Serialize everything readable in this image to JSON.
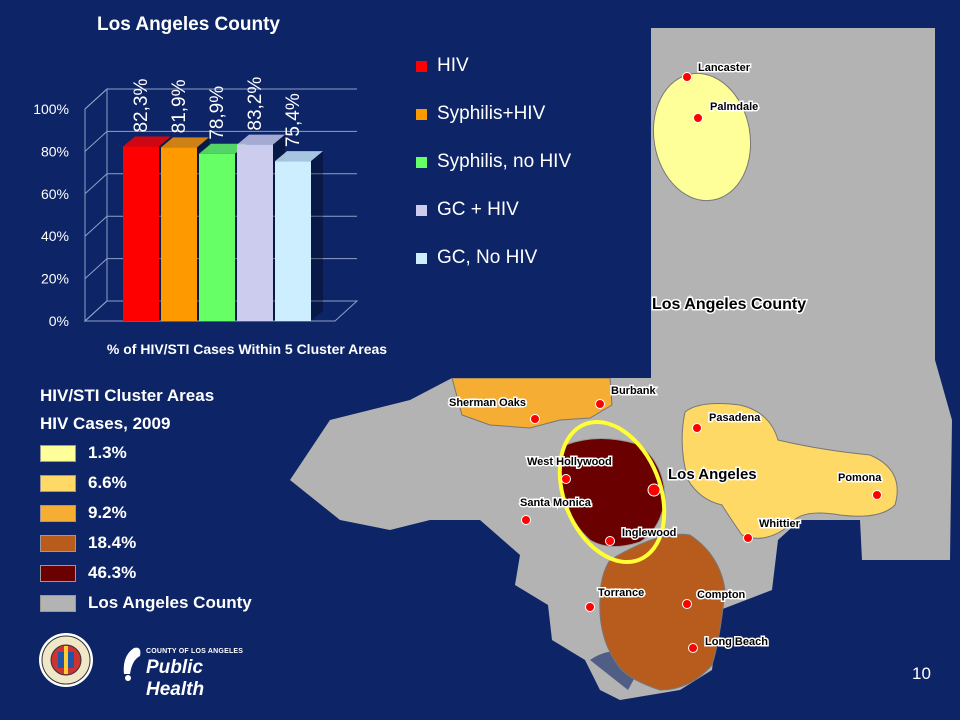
{
  "chart_data": {
    "type": "bar",
    "title": "Los Angeles County",
    "xlabel": "% of HIV/STI Cases Within 5 Cluster Areas",
    "ylabel": "",
    "ylim": [
      0,
      100
    ],
    "y_ticks": [
      "0%",
      "20%",
      "40%",
      "60%",
      "80%",
      "100%"
    ],
    "categories": [
      "HIV",
      "Syphilis+HIV",
      "Syphilis, no HIV",
      "GC + HIV",
      "GC, No HIV"
    ],
    "values": [
      82.3,
      81.9,
      78.9,
      83.2,
      75.4
    ],
    "data_labels": [
      "82,3%",
      "81,9%",
      "78,9%",
      "83,2%",
      "75,4%"
    ],
    "colors": [
      "#ff0000",
      "#ff9900",
      "#66ff66",
      "#ccccee",
      "#cceeff"
    ],
    "legend_position": "right",
    "grid": true
  },
  "map": {
    "county_label": "Los Angeles County",
    "cities": [
      "Lancaster",
      "Palmdale",
      "Burbank",
      "Sherman Oaks",
      "Pasadena",
      "West Hollywood",
      "Los Angeles",
      "Pomona",
      "Santa Monica",
      "Inglewood",
      "Whittier",
      "Torrance",
      "Compton",
      "Long Beach"
    ]
  },
  "cluster_legend": {
    "title1": "HIV/STI Cluster Areas",
    "title2": "HIV Cases, 2009",
    "items": [
      {
        "label": "1.3%",
        "color": "#ffff99"
      },
      {
        "label": "6.6%",
        "color": "#ffd966"
      },
      {
        "label": "9.2%",
        "color": "#f5ad33"
      },
      {
        "label": "18.4%",
        "color": "#b85c1e"
      },
      {
        "label": "46.3%",
        "color": "#6b0000"
      },
      {
        "label": "Los Angeles County",
        "color": "#b3b3b3"
      }
    ]
  },
  "logos": {
    "seal_icon": "county-seal-icon",
    "public_health_small": "COUNTY OF LOS ANGELES",
    "public_health_big": "Public Health"
  },
  "page_number": "10"
}
